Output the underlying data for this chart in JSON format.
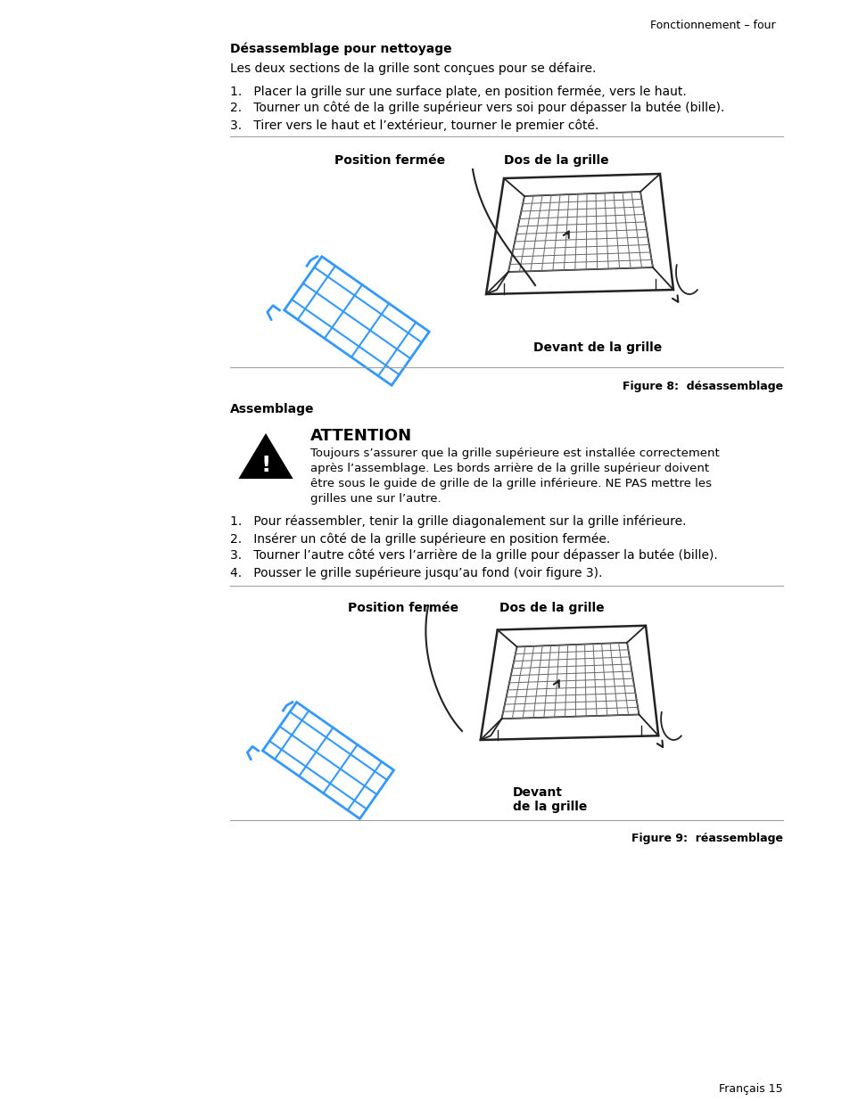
{
  "page_bg": "#ffffff",
  "header_text": "Fonctionnement – four",
  "section1_title": "Désassemblage pour nettoyage",
  "section1_intro": "Les deux sections de la grille sont conçues pour se défaire.",
  "section1_steps": [
    "1.   Placer la grille sur une surface plate, en position fermée, vers le haut.",
    "2.   Tourner un côté de la grille supérieur vers soi pour dépasser la butée (bille).",
    "3.   Tirer vers le haut et l’extérieur, tourner le premier côté."
  ],
  "fig1_label_left": "Position fermée",
  "fig1_label_right": "Dos de la grille",
  "fig1_label_bottom": "Devant de la grille",
  "fig1_caption": "Figure 8:  désassemblage",
  "section2_title": "Assemblage",
  "attention_title": "ATTENTION",
  "attention_text": "Toujours s’assurer que la grille supérieure est installée correctement\naprès l’assemblage. Les bords arrière de la grille supérieur doivent\nêtre sous le guide de grille de la grille inférieure. NE PAS mettre les\ngrilles une sur l’autre.",
  "section2_steps": [
    "1.   Pour réassembler, tenir la grille diagonalement sur la grille inférieure.",
    "2.   Insérer un côté de la grille supérieure en position fermée.",
    "3.   Tourner l’autre côté vers l’arrière de la grille pour dépasser la butée (bille).",
    "4.   Pousser le grille supérieure jusqu’au fond (voir figure 3)."
  ],
  "fig2_label_left": "Position fermée",
  "fig2_label_right": "Dos de la grille",
  "fig2_label_bottom": "Devant\nde la grille",
  "fig2_caption": "Figure 9:  réassemblage",
  "footer_text": "Français 15",
  "text_color": "#000000",
  "blue_color": "#3399ff",
  "dark_color": "#222222",
  "separator_color": "#999999"
}
